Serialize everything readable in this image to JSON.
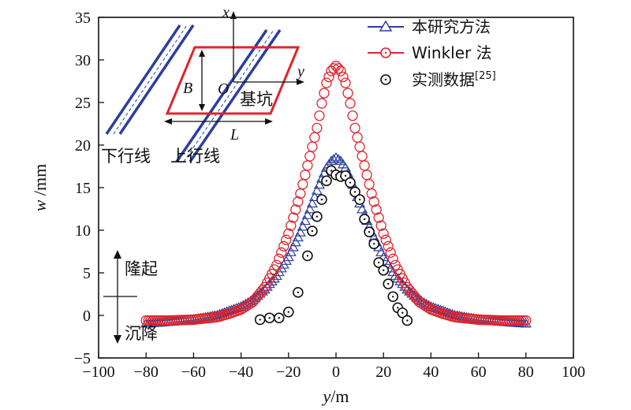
{
  "chart_data": {
    "type": "line",
    "xlabel_var": "y",
    "xlabel_unit": "/m",
    "ylabel_var": "w",
    "ylabel_unit": " /mm",
    "xlim": [
      -100,
      100
    ],
    "ylim": [
      -5,
      35
    ],
    "xticks": [
      -100,
      -80,
      -60,
      -40,
      -20,
      0,
      20,
      40,
      60,
      80,
      100
    ],
    "yticks": [
      -5,
      0,
      5,
      10,
      15,
      20,
      25,
      30,
      35
    ],
    "xtick_labels": [
      "−100",
      "−80",
      "−60",
      "−40",
      "−20",
      "0",
      "20",
      "40",
      "60",
      "80",
      "100"
    ],
    "ytick_labels": [
      "−5",
      "0",
      "5",
      "10",
      "15",
      "20",
      "25",
      "30",
      "35"
    ],
    "series": [
      {
        "name": "本研究方法",
        "marker": "triangle",
        "color": "#2b3f9e",
        "x": [
          -80,
          -70,
          -60,
          -50,
          -45,
          -40,
          -35,
          -30,
          -25,
          -20,
          -15,
          -10,
          -8,
          -6,
          -4,
          -2,
          0,
          2,
          4,
          6,
          8,
          10,
          15,
          20,
          25,
          30,
          35,
          40,
          45,
          50,
          60,
          70,
          80
        ],
        "y": [
          -1.0,
          -0.8,
          -0.5,
          0.0,
          0.5,
          1.0,
          1.8,
          3.0,
          4.6,
          6.8,
          9.7,
          13.1,
          14.6,
          16.0,
          17.3,
          18.1,
          18.5,
          18.1,
          17.3,
          16.0,
          14.6,
          13.1,
          9.7,
          6.8,
          4.6,
          3.0,
          1.8,
          1.0,
          0.5,
          0.0,
          -0.5,
          -0.8,
          -1.0
        ]
      },
      {
        "name": "Winkler 法",
        "marker": "circle",
        "color": "#e0242c",
        "x": [
          -80,
          -70,
          -60,
          -50,
          -45,
          -40,
          -35,
          -30,
          -25,
          -20,
          -15,
          -10,
          -8,
          -6,
          -4,
          -2,
          0,
          2,
          4,
          6,
          8,
          10,
          15,
          20,
          25,
          30,
          35,
          40,
          45,
          50,
          60,
          70,
          80
        ],
        "y": [
          -0.6,
          -0.6,
          -0.5,
          -0.2,
          0.2,
          0.7,
          1.6,
          3.3,
          5.9,
          9.6,
          14.3,
          19.8,
          22.0,
          24.9,
          27.3,
          28.7,
          29.3,
          28.7,
          27.3,
          24.9,
          22.0,
          19.8,
          14.3,
          9.6,
          5.9,
          3.3,
          1.6,
          0.7,
          0.2,
          -0.2,
          -0.5,
          -0.6,
          -0.6
        ]
      },
      {
        "name": "实测数据",
        "name_ref": "[25]",
        "marker": "dotted-circle",
        "color": "#111111",
        "x": [
          -32,
          -28,
          -24,
          -20,
          -16,
          -12,
          -10,
          -8,
          -6,
          -4,
          -2,
          0,
          2,
          4,
          6,
          8,
          10,
          12,
          14,
          16,
          18,
          20,
          22,
          24,
          26,
          28,
          30
        ],
        "y": [
          -0.5,
          -0.3,
          -0.3,
          0.4,
          2.7,
          7.0,
          9.9,
          11.6,
          13.6,
          15.8,
          17.0,
          16.5,
          16.3,
          16.4,
          15.6,
          14.5,
          13.6,
          11.3,
          9.8,
          8.4,
          6.2,
          5.3,
          3.7,
          2.2,
          0.9,
          0.3,
          -0.6
        ]
      }
    ],
    "inset": {
      "x_axis_label": "x",
      "y_axis_label": "y",
      "origin_label": "O",
      "width_label": "B",
      "length_label": "L",
      "pit_label": "基坑",
      "down_line_label": "下行线",
      "up_line_label": "上行线"
    },
    "annotations": {
      "heave_label": "隆起",
      "settle_label": "沉降"
    }
  }
}
